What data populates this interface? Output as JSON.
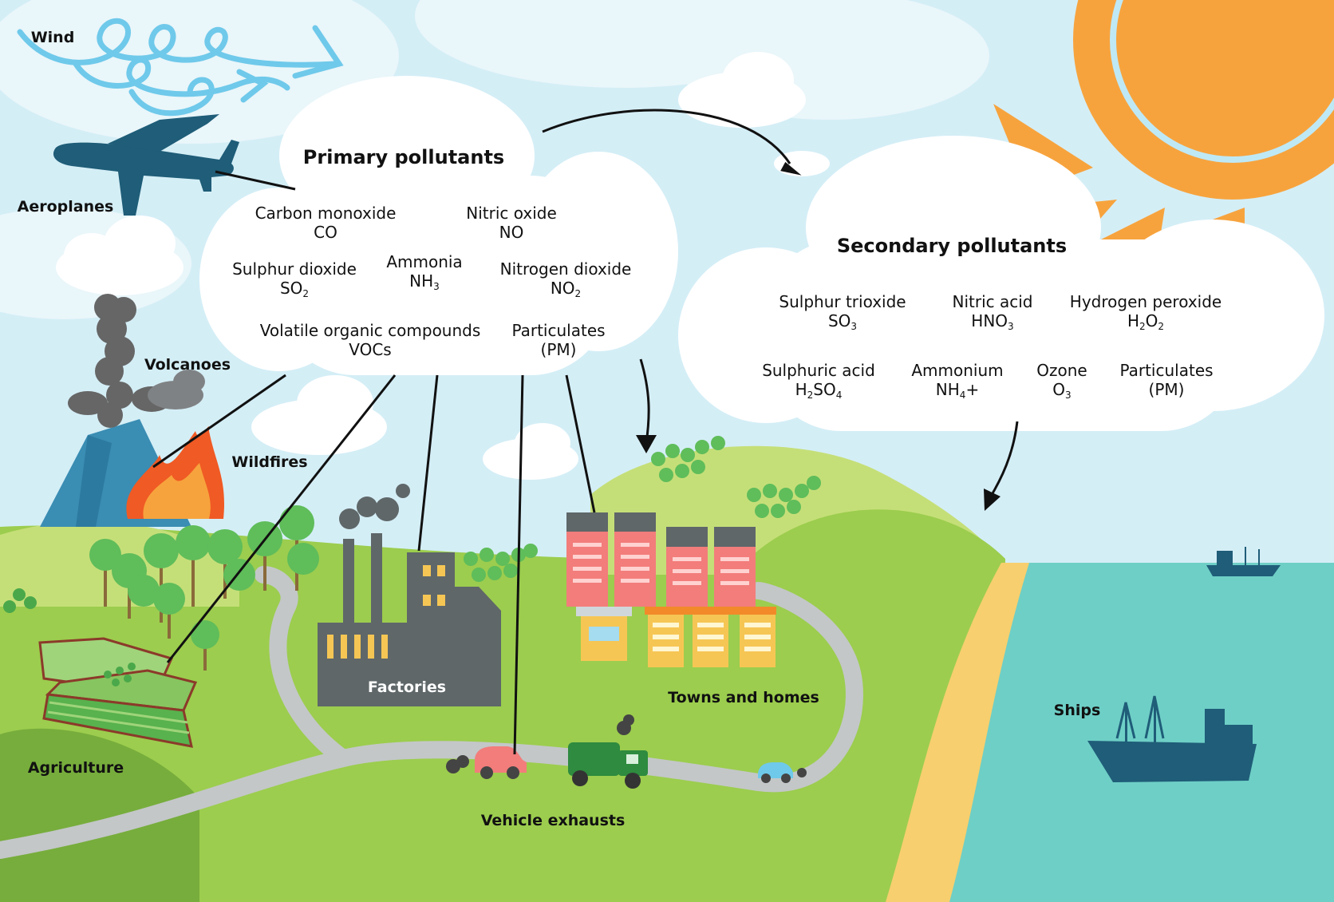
{
  "sources": {
    "wind": "Wind",
    "aeroplanes": "Aeroplanes",
    "volcanoes": "Volcanoes",
    "wildfires": "Wildfires",
    "agriculture": "Agriculture",
    "factories": "Factories",
    "towns": "Towns and homes",
    "vehicles": "Vehicle exhausts",
    "ships": "Ships"
  },
  "primary": {
    "title": "Primary pollutants",
    "items": [
      {
        "name": "Carbon monoxide",
        "formula": "CO",
        "formula_sub": ""
      },
      {
        "name": "Nitric oxide",
        "formula": "NO",
        "formula_sub": ""
      },
      {
        "name": "Sulphur dioxide",
        "formula": "SO",
        "formula_sub": "2"
      },
      {
        "name": "Ammonia",
        "formula": "NH",
        "formula_sub": "3"
      },
      {
        "name": "Nitrogen dioxide",
        "formula": "NO",
        "formula_sub": "2"
      },
      {
        "name": "Volatile organic compounds",
        "formula": "VOCs",
        "formula_sub": ""
      },
      {
        "name": "Particulates",
        "formula": "(PM)",
        "formula_sub": ""
      }
    ]
  },
  "secondary": {
    "title": "Secondary pollutants",
    "items": [
      {
        "name": "Sulphur trioxide",
        "formula_parts": [
          "SO",
          "3"
        ]
      },
      {
        "name": "Nitric acid",
        "formula_parts": [
          "HNO",
          "3"
        ]
      },
      {
        "name": "Hydrogen peroxide",
        "formula_parts": [
          "H",
          "2",
          "O",
          "2"
        ]
      },
      {
        "name": "Sulphuric acid",
        "formula_parts": [
          "H",
          "2",
          "SO",
          "4"
        ]
      },
      {
        "name": "Ammonium",
        "formula_parts": [
          "NH",
          "4",
          "+"
        ]
      },
      {
        "name": "Ozone",
        "formula_parts": [
          "O",
          "3"
        ]
      },
      {
        "name": "Particulates",
        "formula_parts": [
          "(PM)"
        ]
      }
    ]
  },
  "colors": {
    "sky": "#d4eef6",
    "grass": "#9ccd4e",
    "grass_light": "#c5df78",
    "sea": "#6ecfc6",
    "sand": "#f7cf6e",
    "sun": "#f7a33d",
    "navy": "#1f5d78",
    "road": "#c3c7c8",
    "factory": "#5f6769",
    "apartment": "#f27d7b",
    "house": "#f6c654"
  }
}
